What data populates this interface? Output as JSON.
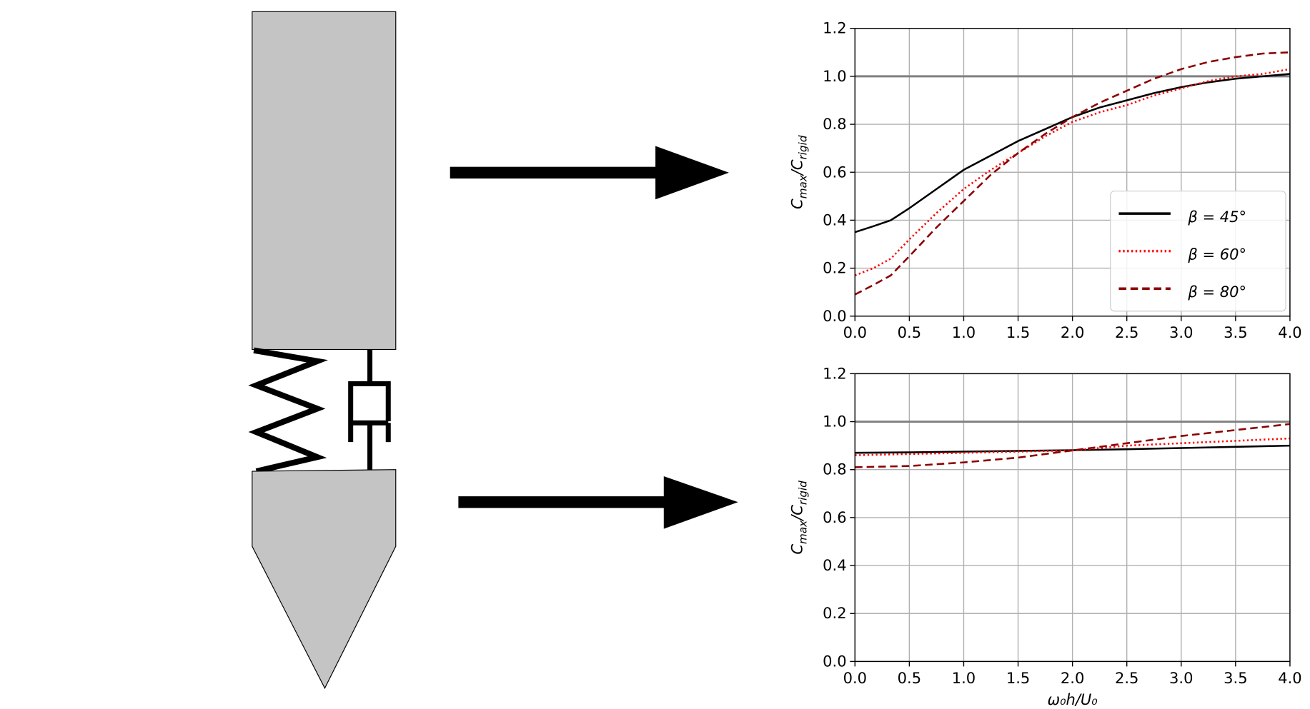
{
  "chart_data": [
    {
      "type": "line",
      "ylabel": [
        "C",
        "max",
        "/C",
        "rigid"
      ],
      "x": [
        0,
        0.17,
        0.33,
        0.5,
        0.75,
        1.0,
        1.25,
        1.5,
        1.75,
        2.0,
        2.25,
        2.5,
        2.75,
        3.0,
        3.25,
        3.5,
        3.75,
        4.0
      ],
      "series": [
        {
          "name": "β = 45°",
          "color": "#000000",
          "linestyle": "solid",
          "values": [
            0.35,
            0.375,
            0.4,
            0.45,
            0.53,
            0.61,
            0.67,
            0.73,
            0.78,
            0.83,
            0.87,
            0.9,
            0.93,
            0.955,
            0.975,
            0.99,
            1.0,
            1.01
          ]
        },
        {
          "name": "β = 60°",
          "color": "#ff0000",
          "linestyle": "dotted",
          "values": [
            0.17,
            0.2,
            0.24,
            0.32,
            0.43,
            0.53,
            0.61,
            0.68,
            0.75,
            0.81,
            0.85,
            0.88,
            0.92,
            0.95,
            0.98,
            1.0,
            1.01,
            1.03
          ]
        },
        {
          "name": "β = 80°",
          "color": "#8b0000",
          "linestyle": "dashed",
          "values": [
            0.09,
            0.13,
            0.17,
            0.25,
            0.37,
            0.48,
            0.59,
            0.68,
            0.76,
            0.83,
            0.89,
            0.94,
            0.99,
            1.03,
            1.06,
            1.08,
            1.095,
            1.1
          ]
        }
      ],
      "xlim": [
        0,
        4
      ],
      "ylim": [
        0,
        1.2
      ],
      "xticks": [
        {
          "value": 0,
          "label": "0.0"
        },
        0.5,
        {
          "value": 1,
          "label": "1.0"
        },
        1.5,
        {
          "value": 2,
          "label": "2.0"
        },
        2.5,
        {
          "value": 3,
          "label": "3.0"
        },
        3.5,
        {
          "value": 4,
          "label": "4.0"
        }
      ],
      "yticks": [
        {
          "value": 0,
          "label": "0.0"
        },
        0.2,
        0.4,
        0.6,
        0.8,
        {
          "value": 1,
          "label": "1.0"
        },
        1.2
      ],
      "hline": 1,
      "grid": true,
      "legend": "lower right"
    },
    {
      "type": "line",
      "ylabel": [
        "C",
        "max",
        "/C",
        "rigid"
      ],
      "xlabel": "ω₀h/U₀",
      "x": [
        0,
        0.5,
        1.0,
        1.5,
        2.0,
        2.5,
        3.0,
        3.5,
        4.0
      ],
      "series": [
        {
          "name": "β = 45°",
          "color": "#000000",
          "linestyle": "solid",
          "values": [
            0.87,
            0.872,
            0.875,
            0.878,
            0.881,
            0.885,
            0.89,
            0.895,
            0.9
          ]
        },
        {
          "name": "β = 60°",
          "color": "#ff0000",
          "linestyle": "dotted",
          "values": [
            0.86,
            0.865,
            0.87,
            0.875,
            0.88,
            0.9,
            0.91,
            0.92,
            0.93
          ]
        },
        {
          "name": "β = 80°",
          "color": "#8b0000",
          "linestyle": "dashed",
          "values": [
            0.81,
            0.815,
            0.83,
            0.85,
            0.88,
            0.91,
            0.94,
            0.965,
            0.99
          ]
        }
      ],
      "xlim": [
        0,
        4
      ],
      "ylim": [
        0,
        1.2
      ],
      "xticks": [
        {
          "value": 0,
          "label": "0.0"
        },
        0.5,
        {
          "value": 1,
          "label": "1.0"
        },
        1.5,
        {
          "value": 2,
          "label": "2.0"
        },
        2.5,
        {
          "value": 3,
          "label": "3.0"
        },
        3.5,
        {
          "value": 4,
          "label": "4.0"
        }
      ],
      "yticks": [
        {
          "value": 0,
          "label": "0.0"
        },
        0.2,
        0.4,
        0.6,
        0.8,
        {
          "value": 1,
          "label": "1.0"
        },
        1.2
      ],
      "hline": 1,
      "grid": true
    }
  ]
}
